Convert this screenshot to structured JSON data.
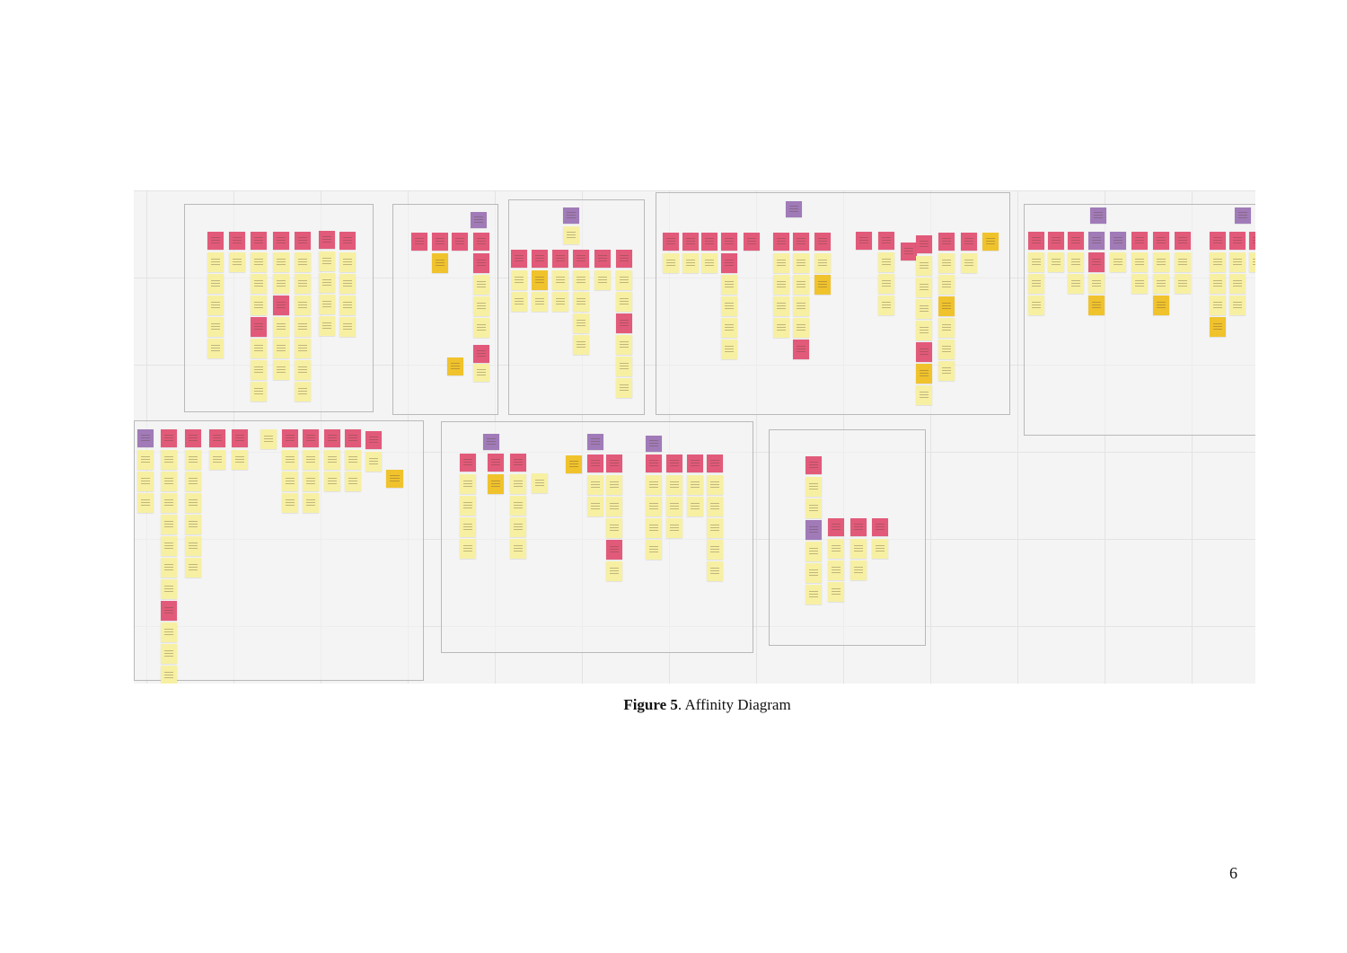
{
  "figure": {
    "caption_label": "Figure 5",
    "caption_text": ". Affinity Diagram",
    "note_colors": {
      "header": "#e25a7a",
      "insight": "#f7f0a3",
      "highlight": "#f0c32d",
      "theme": "#a07bb8"
    }
  },
  "page": {
    "number": "6"
  }
}
